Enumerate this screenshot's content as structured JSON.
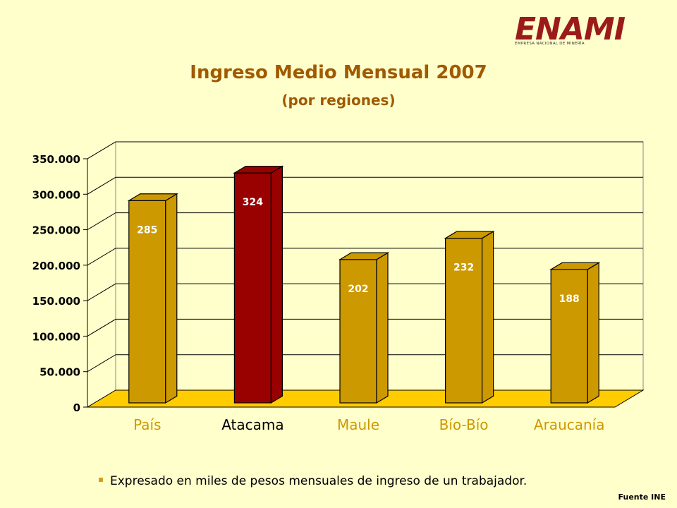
{
  "logo": {
    "name": "ENAMI",
    "subtitle": "EMPRESA NACIONAL DE MINERÍA"
  },
  "note": "Expresado en miles de pesos mensuales de ingreso de un trabajador.",
  "source": "Fuente INE",
  "colors": {
    "bar": "#cc9900",
    "bar_highlight": "#990000",
    "wall": "#ffffcc",
    "floor": "#ffcc00",
    "category_label": "#cc9900",
    "category_label_highlight": "#000000"
  },
  "chart_data": {
    "type": "bar",
    "title": "Ingreso Medio Mensual 2007",
    "subtitle": "(por regiones)",
    "categories": [
      "País",
      "Atacama",
      "Maule",
      "Bío-Bío",
      "Araucanía"
    ],
    "values": [
      285000,
      324000,
      202000,
      232000,
      188000
    ],
    "data_labels": [
      "285",
      "324",
      "202",
      "232",
      "188"
    ],
    "highlight": "Atacama",
    "ylim": [
      0,
      350000
    ],
    "yticks": [
      0,
      50000,
      100000,
      150000,
      200000,
      250000,
      300000,
      350000
    ],
    "ytick_labels": [
      "0",
      "50.000",
      "100.000",
      "150.000",
      "200.000",
      "250.000",
      "300.000",
      "350.000"
    ],
    "grid": true,
    "style": "3d"
  }
}
